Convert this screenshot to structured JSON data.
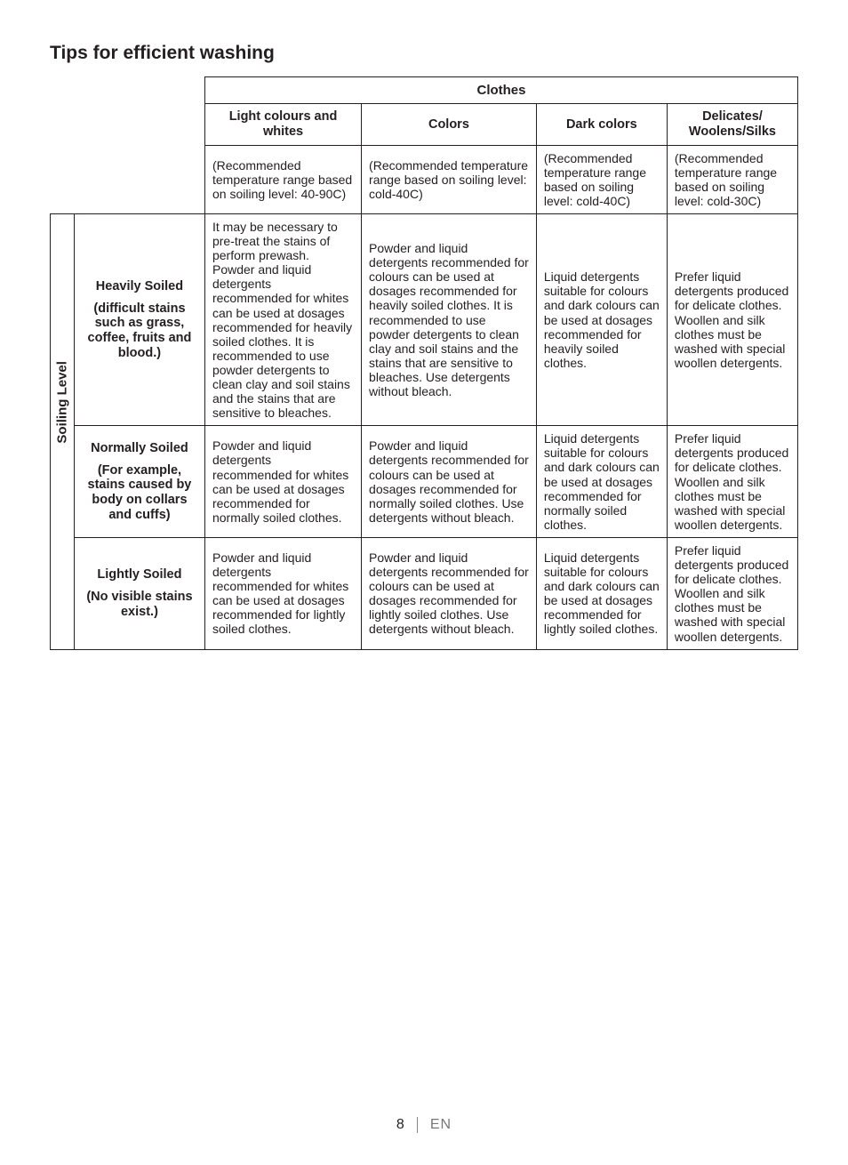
{
  "title": "Tips for efficient washing",
  "clothesHeader": "Clothes",
  "soilingLabel": "Soiling Level",
  "columns": {
    "c1": "Light colours and whites",
    "c2": "Colors",
    "c3": "Dark colors",
    "c4": "Delicates/ Woolens/Silks"
  },
  "temps": {
    "c1": "(Recommended temperature range based on soiling level: 40-90C)",
    "c2": "(Recommended temperature range based on soiling level: cold-40C)",
    "c3": "(Recommended temperature range based on soiling level: cold-40C)",
    "c4": "(Recommended temperature range based on soiling level: cold-30C)"
  },
  "rows": {
    "heavy": {
      "label1": "Heavily Soiled",
      "label2": "(difficult stains such as grass, coffee, fruits and blood.)",
      "c1": "It may be necessary to pre-treat the stains of perform prewash. Powder and liquid detergents recommended for whites can be used at dosages recommended for heavily soiled clothes. It is recommended to use powder detergents to clean clay and soil stains and the stains that are sensitive to bleaches.",
      "c2": "Powder and liquid detergents recommended for colours can be used at dosages recommended for heavily soiled clothes. It is recommended to use powder detergents to clean clay and soil stains and the stains that are sensitive to bleaches. Use detergents without bleach.",
      "c3": "Liquid detergents suitable for colours and dark colours can be used at dosages recommended for heavily soiled clothes.",
      "c4": "Prefer liquid detergents produced for delicate clothes. Woollen and silk clothes must be washed with special woollen detergents."
    },
    "normal": {
      "label1": "Normally Soiled",
      "label2": "(For example, stains caused by body on collars and cuffs)",
      "c1": "Powder and liquid detergents recommended for whites can be used at dosages recommended for normally soiled clothes.",
      "c2": "Powder and liquid detergents recommended for colours can be used at dosages recommended for normally soiled clothes. Use detergents without bleach.",
      "c3": "Liquid detergents suitable for colours and dark colours can be used at dosages recommended for normally soiled clothes.",
      "c4": "Prefer liquid detergents produced for delicate clothes. Woollen and silk clothes must be washed with special woollen detergents."
    },
    "light": {
      "label1": "Lightly Soiled",
      "label2": "(No visible stains exist.)",
      "c1": "Powder and liquid detergents recommended for whites can be used at dosages recommended for lightly soiled clothes.",
      "c2": "Powder and liquid detergents recommended for colours can be used at dosages recommended for lightly soiled clothes. Use detergents without bleach.",
      "c3": "Liquid detergents suitable for colours and dark colours can be used at dosages recommended for lightly soiled clothes.",
      "c4": "Prefer liquid detergents produced for delicate clothes. Woollen and silk clothes must be washed with special woollen detergents."
    }
  },
  "footer": {
    "page": "8",
    "lang": "EN"
  }
}
